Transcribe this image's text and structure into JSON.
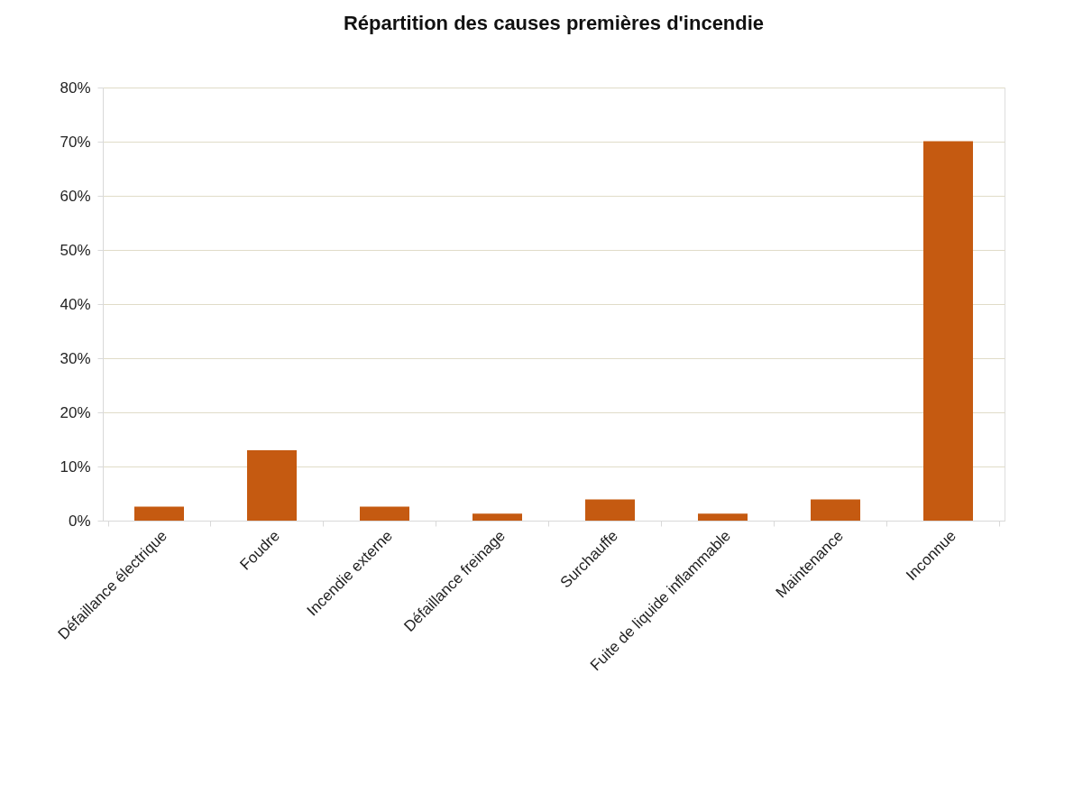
{
  "chart_data": {
    "type": "bar",
    "title": "Répartition des causes premières d'incendie",
    "categories": [
      "Défaillance électrique",
      "Foudre",
      "Incendie externe",
      "Défaillance freinage",
      "Surchauffe",
      "Fuite de liquide inflammable",
      "Maintenance",
      "Inconnue"
    ],
    "values": [
      2.6,
      13.0,
      2.6,
      1.3,
      3.9,
      1.3,
      3.9,
      70.1
    ],
    "color": "#c55a11",
    "ylim": [
      0,
      80
    ],
    "yticks": [
      {
        "value": 0,
        "label": "0%"
      },
      {
        "value": 10,
        "label": "10%"
      },
      {
        "value": 20,
        "label": "20%"
      },
      {
        "value": 30,
        "label": "30%"
      },
      {
        "value": 40,
        "label": "40%"
      },
      {
        "value": 50,
        "label": "50%"
      },
      {
        "value": 60,
        "label": "60%"
      },
      {
        "value": 70,
        "label": "70%"
      },
      {
        "value": 80,
        "label": "80%"
      }
    ],
    "grid": "y"
  }
}
